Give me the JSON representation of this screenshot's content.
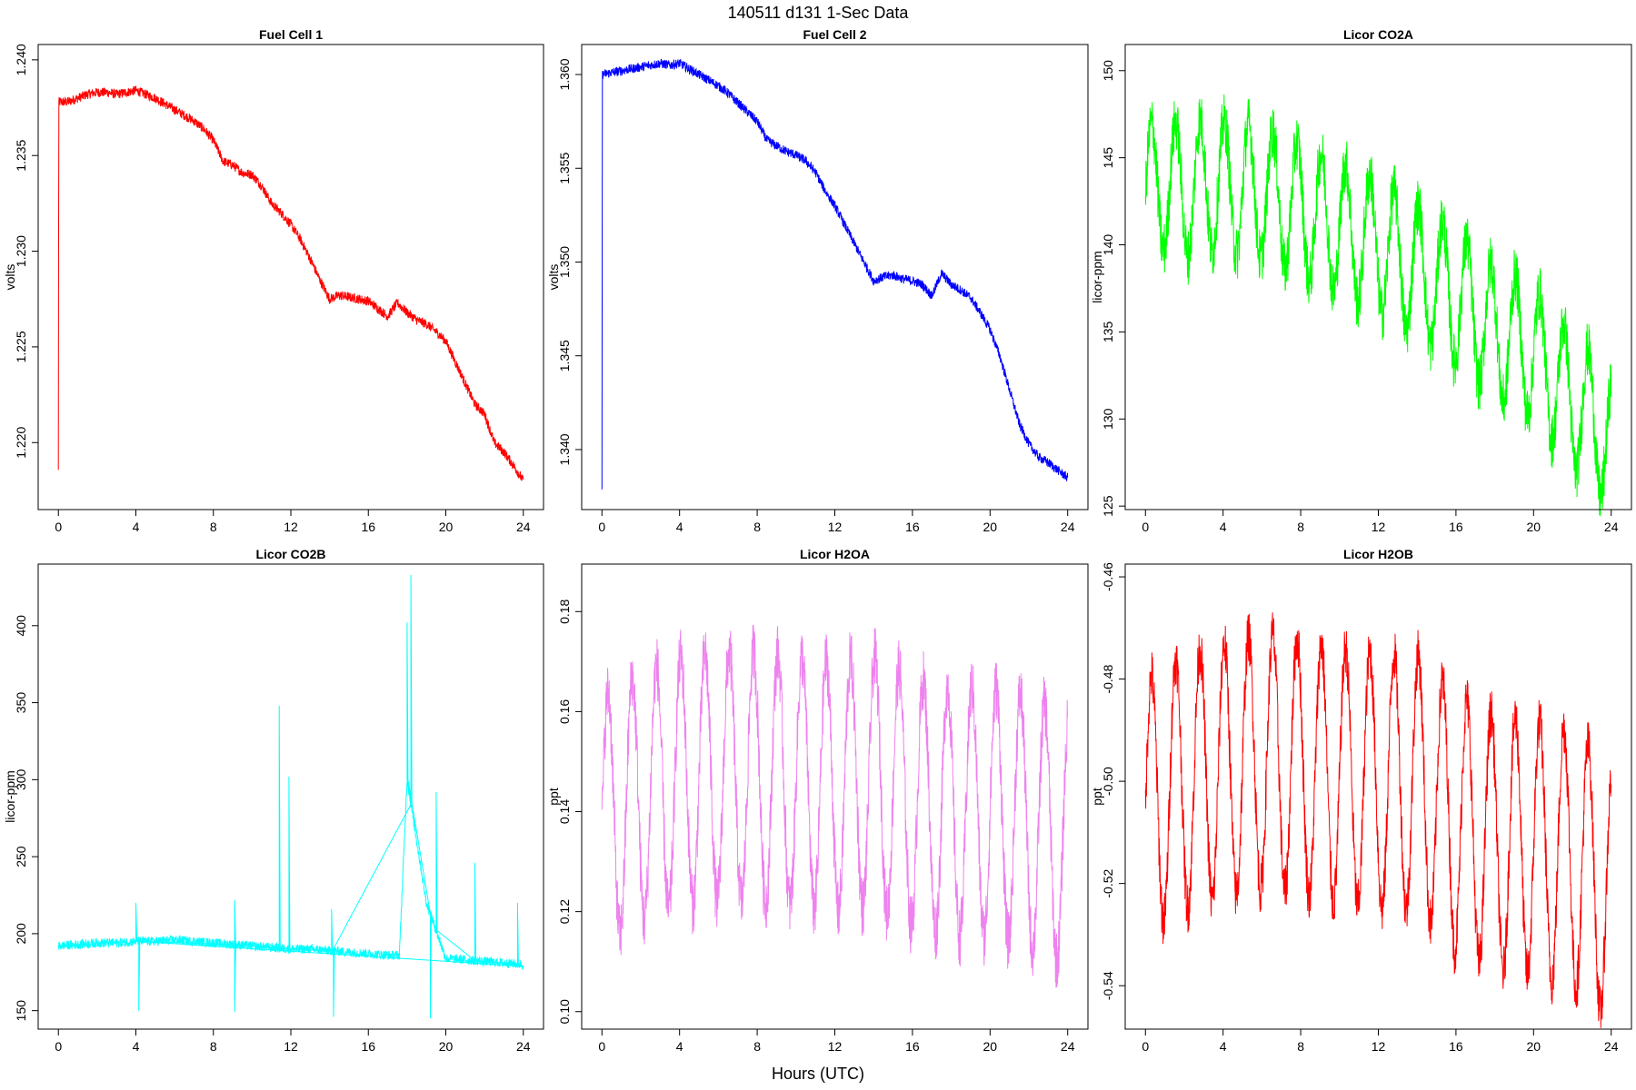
{
  "figure": {
    "title": "140511   d131   1-Sec Data",
    "xlabel": "Hours (UTC)"
  },
  "chart_data": [
    {
      "type": "line",
      "title": "Fuel Cell 1",
      "ylabel": "volts",
      "color": "#ff0000",
      "x_ticks": [
        0,
        4,
        8,
        12,
        16,
        20,
        24
      ],
      "y_ticks": [
        "1.220",
        "1.225",
        "1.230",
        "1.235",
        "1.240"
      ],
      "xlim": [
        0,
        24
      ],
      "ylim": [
        1.2165,
        1.2408
      ],
      "x": [
        0,
        0.02,
        0.5,
        1,
        1.5,
        2,
        2.5,
        3,
        3.5,
        4,
        4.5,
        5,
        5.5,
        6,
        6.5,
        7,
        7.5,
        8,
        8.5,
        9,
        9.5,
        10,
        10.5,
        11,
        11.5,
        12,
        12.5,
        13,
        13.5,
        14,
        14.5,
        15,
        15.5,
        16,
        16.5,
        17,
        17.5,
        18,
        18.5,
        19,
        19.5,
        20,
        20.5,
        21,
        21.5,
        22,
        22.5,
        23,
        23.5,
        24
      ],
      "values": [
        1.2185,
        1.2378,
        1.2378,
        1.238,
        1.2382,
        1.2383,
        1.2383,
        1.2382,
        1.2383,
        1.2384,
        1.2382,
        1.238,
        1.2377,
        1.2374,
        1.2371,
        1.2368,
        1.2364,
        1.2358,
        1.2347,
        1.2345,
        1.2341,
        1.234,
        1.2334,
        1.2325,
        1.232,
        1.2314,
        1.2306,
        1.2296,
        1.2285,
        1.2275,
        1.2277,
        1.2276,
        1.2275,
        1.2274,
        1.227,
        1.2266,
        1.2273,
        1.2268,
        1.2264,
        1.2262,
        1.2258,
        1.2253,
        1.2242,
        1.2231,
        1.222,
        1.2215,
        1.22,
        1.2195,
        1.2188,
        1.218
      ],
      "noise": 0.00025
    },
    {
      "type": "line",
      "title": "Fuel Cell 2",
      "ylabel": "volts",
      "color": "#0000ff",
      "x_ticks": [
        0,
        4,
        8,
        12,
        16,
        20,
        24
      ],
      "y_ticks": [
        "1.340",
        "1.345",
        "1.350",
        "1.355",
        "1.360"
      ],
      "xlim": [
        0,
        24
      ],
      "ylim": [
        1.3368,
        1.3616
      ],
      "x": [
        0,
        0.02,
        0.5,
        1,
        1.5,
        2,
        2.5,
        3,
        3.5,
        4,
        4.5,
        5,
        5.5,
        6,
        6.5,
        7,
        7.5,
        8,
        8.5,
        9,
        9.5,
        10,
        10.5,
        11,
        11.5,
        12,
        12.5,
        13,
        13.5,
        14,
        14.5,
        15,
        15.5,
        16,
        16.5,
        17,
        17.5,
        18,
        18.5,
        19,
        19.5,
        20,
        20.5,
        21,
        21.5,
        22,
        22.5,
        23,
        23.5,
        24
      ],
      "values": [
        1.338,
        1.36,
        1.3601,
        1.3602,
        1.3603,
        1.3604,
        1.3605,
        1.3606,
        1.3605,
        1.3606,
        1.3603,
        1.36,
        1.3597,
        1.3594,
        1.359,
        1.3585,
        1.358,
        1.3575,
        1.3565,
        1.3562,
        1.3559,
        1.3557,
        1.3554,
        1.3548,
        1.3538,
        1.353,
        1.352,
        1.351,
        1.35,
        1.349,
        1.3492,
        1.3493,
        1.3491,
        1.349,
        1.3488,
        1.3482,
        1.3494,
        1.3488,
        1.3485,
        1.3481,
        1.3473,
        1.3464,
        1.345,
        1.3432,
        1.3414,
        1.3403,
        1.3396,
        1.3393,
        1.3389,
        1.3385
      ],
      "noise": 0.00025
    },
    {
      "type": "line",
      "title": "Licor CO2A",
      "ylabel": "licor-ppm",
      "color": "#00ff00",
      "x_ticks": [
        0,
        4,
        8,
        12,
        16,
        20,
        24
      ],
      "y_ticks": [
        "125",
        "130",
        "135",
        "140",
        "145",
        "150"
      ],
      "xlim": [
        0,
        24
      ],
      "ylim": [
        124.8,
        151.5
      ],
      "x": [
        0,
        1,
        2,
        3,
        4,
        5,
        6,
        7,
        8,
        9,
        10,
        11,
        12,
        13,
        14,
        15,
        16,
        17,
        18,
        19,
        20,
        21,
        22,
        23,
        24
      ],
      "values": [
        143.0,
        143.5,
        143.0,
        143.5,
        143.3,
        143.2,
        143.0,
        142.5,
        142.0,
        141.5,
        141.0,
        140.5,
        140.0,
        139.2,
        138.5,
        137.8,
        137.0,
        136.0,
        135.0,
        134.5,
        133.8,
        132.5,
        131.0,
        130.0,
        128.5
      ],
      "amplitude": 3.8,
      "period_hours": 1.25,
      "noise": 1.6
    },
    {
      "type": "line",
      "title": "Licor CO2B",
      "ylabel": "licor-ppm",
      "color": "#00ffff",
      "x_ticks": [
        0,
        4,
        8,
        12,
        16,
        20,
        24
      ],
      "y_ticks": [
        "150",
        "200",
        "250",
        "300",
        "350",
        "400"
      ],
      "xlim": [
        0,
        24
      ],
      "ylim": [
        138,
        440
      ],
      "x": [
        0,
        1,
        2,
        3,
        4,
        5,
        6,
        7,
        8,
        9,
        10,
        11,
        12,
        13,
        14,
        15,
        16,
        17,
        17.6,
        18,
        19,
        20,
        21,
        22,
        23,
        24
      ],
      "values": [
        192,
        193,
        194,
        194,
        195,
        195,
        196,
        195,
        194,
        193,
        192,
        191,
        190,
        190,
        189,
        188,
        187,
        186,
        186,
        300,
        220,
        184,
        183,
        182,
        181,
        180
      ],
      "spikes": [
        {
          "x": 4.15,
          "y": 150
        },
        {
          "x": 4.0,
          "y": 220
        },
        {
          "x": 9.1,
          "y": 149
        },
        {
          "x": 9.1,
          "y": 222
        },
        {
          "x": 11.4,
          "y": 348
        },
        {
          "x": 11.9,
          "y": 302
        },
        {
          "x": 14.2,
          "y": 146
        },
        {
          "x": 14.1,
          "y": 216
        },
        {
          "x": 18.2,
          "y": 433
        },
        {
          "x": 18.0,
          "y": 402
        },
        {
          "x": 19.2,
          "y": 145
        },
        {
          "x": 19.5,
          "y": 292
        },
        {
          "x": 21.5,
          "y": 246
        },
        {
          "x": 23.7,
          "y": 220
        }
      ],
      "noise": 3.0
    },
    {
      "type": "line",
      "title": "Licor H2OA",
      "ylabel": "ppt",
      "color": "#ee82ee",
      "x_ticks": [
        0,
        4,
        8,
        12,
        16,
        20,
        24
      ],
      "y_ticks": [
        "0.10",
        "0.12",
        "0.14",
        "0.16",
        "0.18"
      ],
      "xlim": [
        0,
        24
      ],
      "ylim": [
        0.0965,
        0.1895
      ],
      "x": [
        0,
        2,
        4,
        6,
        8,
        10,
        12,
        14,
        16,
        18,
        20,
        22,
        24
      ],
      "values": [
        0.138,
        0.143,
        0.146,
        0.147,
        0.147,
        0.146,
        0.145,
        0.146,
        0.142,
        0.14,
        0.14,
        0.138,
        0.134
      ],
      "amplitude": 0.025,
      "period_hours": 1.25,
      "noise": 0.006
    },
    {
      "type": "line",
      "title": "Licor H2OB",
      "ylabel": "ppt",
      "color": "#ff0000",
      "x_ticks": [
        0,
        4,
        8,
        12,
        16,
        20,
        24
      ],
      "y_ticks": [
        "-0.54",
        "-0.52",
        "-0.50",
        "-0.48",
        "-0.46"
      ],
      "xlim": [
        0,
        24
      ],
      "ylim": [
        -0.5485,
        -0.4575
      ],
      "x": [
        0,
        2,
        4,
        6,
        8,
        10,
        12,
        14,
        16,
        18,
        20,
        22,
        24
      ],
      "values": [
        -0.505,
        -0.5,
        -0.498,
        -0.496,
        -0.497,
        -0.499,
        -0.5,
        -0.5,
        -0.508,
        -0.512,
        -0.513,
        -0.515,
        -0.522
      ],
      "amplitude": 0.025,
      "period_hours": 1.25,
      "noise": 0.005
    }
  ]
}
